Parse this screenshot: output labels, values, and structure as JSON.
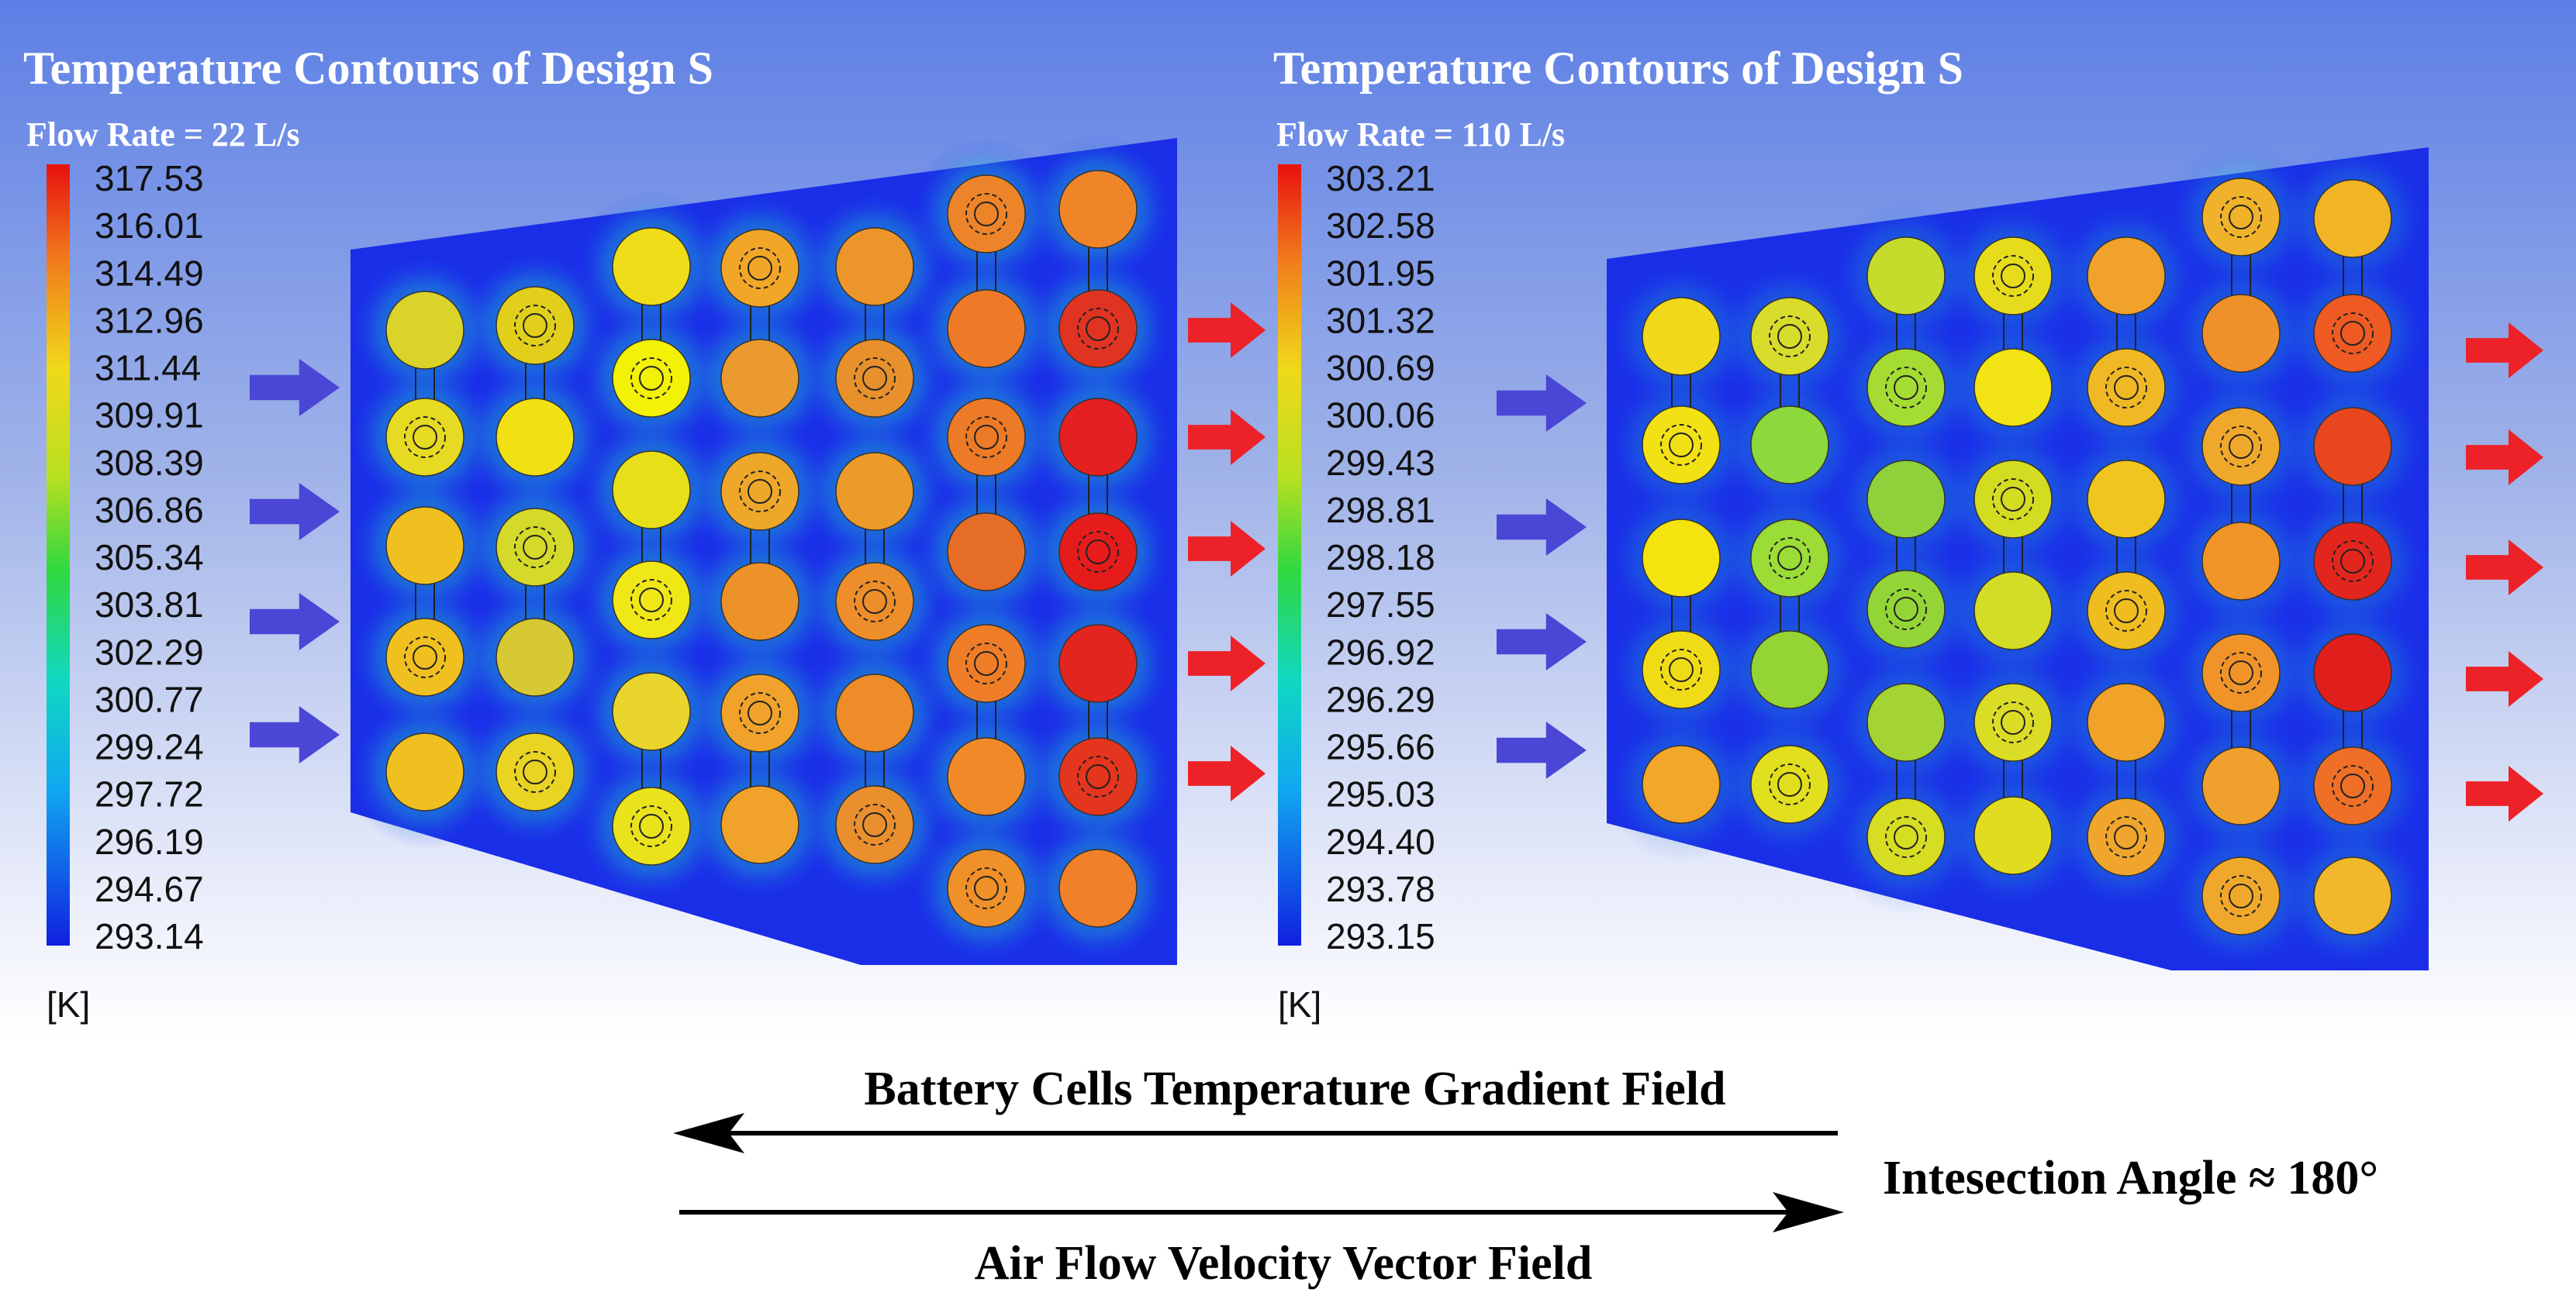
{
  "panels": [
    {
      "title": "Temperature Contours of Design S",
      "subtitle": "Flow Rate = 22 L/s",
      "scale": [
        "317.53",
        "316.01",
        "314.49",
        "312.96",
        "311.44",
        "309.91",
        "308.39",
        "306.86",
        "305.34",
        "303.81",
        "302.29",
        "300.77",
        "299.24",
        "297.72",
        "296.19",
        "294.67",
        "293.14"
      ],
      "unit": "[K]",
      "columns": [
        [
          "#d9d32a",
          "#e6da22"
        ],
        [
          "#e1cf1c",
          "#f0e014",
          "#d4d92a",
          "#d7c934",
          "#e9d323"
        ],
        [
          "#efdd1a",
          "#f2f106",
          "#e7e019",
          "#f0e716",
          "#ead52c",
          "#eae31c"
        ],
        [
          "#f2a628",
          "#ea9a2e",
          "#efa72a",
          "#ed9228",
          "#f0a22a",
          "#f1a22a"
        ],
        [
          "#ec952a",
          "#e8902c",
          "#ec9a2a",
          "#ee8e2a",
          "#ed8c28",
          "#ea8f2e"
        ],
        [
          "#ee8429",
          "#ee7a28",
          "#ed7a26",
          "#e66d26",
          "#ef7d27",
          "#f08a28",
          "#f09028"
        ],
        [
          "#f08428",
          "#e13322",
          "#e52022",
          "#e61c1c",
          "#e2261f",
          "#e4351e",
          "#f0802a"
        ]
      ]
    },
    {
      "title": "Temperature Contours of Design S",
      "subtitle": "Flow Rate = 110 L/s",
      "scale": [
        "303.21",
        "302.58",
        "301.95",
        "301.32",
        "300.69",
        "300.06",
        "299.43",
        "298.81",
        "298.18",
        "297.55",
        "296.92",
        "296.29",
        "295.66",
        "295.03",
        "294.40",
        "293.78",
        "293.15"
      ],
      "unit": "[K]",
      "columns": [
        [
          "#f0d81a",
          "#f2e115",
          "#f4e30f",
          "#f0dc16",
          "#f2a62a"
        ],
        [
          "#d8dc2a",
          "#8dd83c",
          "#9bdc36",
          "#94d434",
          "#e1df1e"
        ],
        [
          "#c6dc2c",
          "#a5dc33",
          "#8ed13b",
          "#93d537",
          "#a4d334",
          "#d7dd22"
        ],
        [
          "#e6dc1c",
          "#f1e314",
          "#d4dc22",
          "#d5dc28",
          "#dbdc26",
          "#e2dc20"
        ],
        [
          "#f0a22a",
          "#f0b825",
          "#f0c61e",
          "#f0bd20",
          "#f0a229",
          "#f0a62c"
        ],
        [
          "#f0b22a",
          "#f0902a",
          "#f0a82c",
          "#f09428",
          "#f0942a",
          "#f0a02c",
          "#f0a82c"
        ],
        [
          "#f0b424",
          "#ee5a22",
          "#e8461f",
          "#e2261e",
          "#e01e1c",
          "#f06f27",
          "#f0b82a"
        ]
      ]
    }
  ],
  "legend": {
    "gradient_label": "Battery Cells Temperature Gradient Field",
    "flow_label": "Air Flow Velocity Vector Field",
    "angle_label": "Intesection Angle ≈ 180°"
  },
  "colors": {
    "inflow_arrow": "#4a46d6",
    "outflow_arrow": "#ec2228",
    "duct": "#1a2ee8"
  }
}
